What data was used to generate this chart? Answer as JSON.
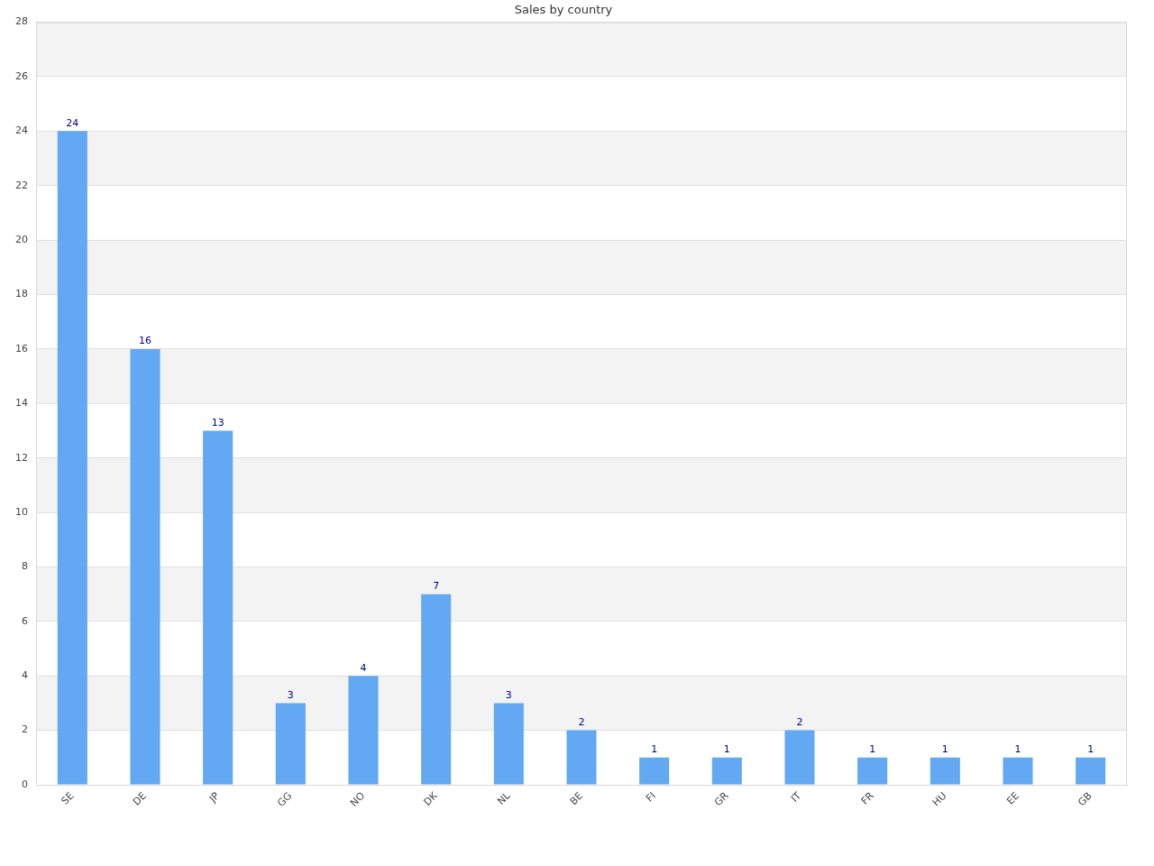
{
  "chart_data": {
    "type": "bar",
    "title": "Sales by country",
    "categories": [
      "SE",
      "DE",
      "JP",
      "GG",
      "NO",
      "DK",
      "NL",
      "BE",
      "FI",
      "GR",
      "IT",
      "FR",
      "HU",
      "EE",
      "GB"
    ],
    "values": [
      24,
      16,
      13,
      3,
      4,
      7,
      3,
      2,
      1,
      1,
      2,
      1,
      1,
      1,
      1
    ],
    "color": "#62a8f3",
    "ylim": [
      0,
      28
    ],
    "yticks": [
      0,
      2,
      4,
      6,
      8,
      10,
      12,
      14,
      16,
      18,
      20,
      22,
      24,
      26,
      28
    ],
    "grid": "y",
    "data_labels": true
  }
}
